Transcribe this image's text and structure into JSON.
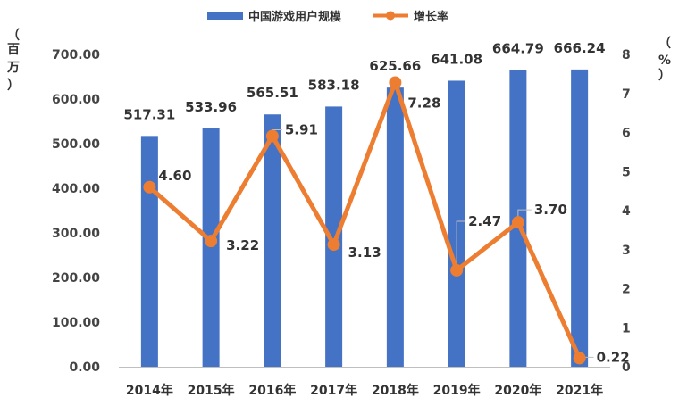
{
  "chart_data": {
    "type": "bar",
    "categories": [
      "2014年",
      "2015年",
      "2016年",
      "2017年",
      "2018年",
      "2019年",
      "2020年",
      "2021年"
    ],
    "series": [
      {
        "name": "中国游戏用户规模",
        "type": "bar",
        "axis": "left",
        "color": "#4472C4",
        "values": [
          517.31,
          533.96,
          565.51,
          583.18,
          625.66,
          641.08,
          664.79,
          666.24
        ],
        "labels": [
          "517.31",
          "533.96",
          "565.51",
          "583.18",
          "625.66",
          "641.08",
          "664.79",
          "666.24"
        ]
      },
      {
        "name": "增长率",
        "type": "line",
        "axis": "right",
        "color": "#ED7D31",
        "values": [
          4.6,
          3.22,
          5.91,
          3.13,
          7.28,
          2.47,
          3.7,
          0.22
        ],
        "labels": [
          "4.60",
          "3.22",
          "5.91",
          "3.13",
          "7.28",
          "2.47",
          "3.70",
          "0.22"
        ]
      }
    ],
    "y_left": {
      "label_chars": [
        "（",
        "百",
        "万",
        "）"
      ],
      "ylim": [
        0,
        700
      ],
      "ticks": [
        "0.00",
        "100.00",
        "200.00",
        "300.00",
        "400.00",
        "500.00",
        "600.00",
        "700.00"
      ]
    },
    "y_right": {
      "label_chars": [
        "（",
        "%",
        "）"
      ],
      "ylim": [
        0,
        8
      ],
      "ticks": [
        "0",
        "1",
        "2",
        "3",
        "4",
        "5",
        "6",
        "7",
        "8"
      ]
    },
    "legend_position": "top-center",
    "grid": false
  }
}
